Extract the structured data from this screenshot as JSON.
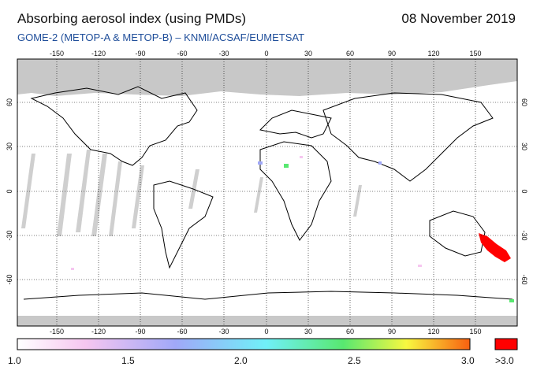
{
  "header": {
    "title": "Absorbing aerosol index (using PMDs)",
    "date": "08 November 2019",
    "subtitle": "GOME-2 (METOP-A & METOP-B)  –  KNMI/ACSAF/EUMETSAT"
  },
  "map": {
    "lon_ticks": [
      "-150",
      "-120",
      "-90",
      "-60",
      "-30",
      "0",
      "30",
      "60",
      "90",
      "120",
      "150"
    ],
    "lat_ticks": [
      "60",
      "30",
      "0",
      "-30",
      "-60"
    ],
    "no_data_color": "#c8c8c8",
    "high_value_color": "#ff0000"
  },
  "colorbar": {
    "labels": [
      "1.0",
      "1.5",
      "2.0",
      "2.5",
      "3.0"
    ],
    "overflow_label": ">3.0",
    "colors": [
      "#ffffff",
      "#f6c6f0",
      "#a0a8f8",
      "#70f0f8",
      "#58e870",
      "#f8f840",
      "#f86010"
    ],
    "overflow_color": "#ff0000"
  }
}
